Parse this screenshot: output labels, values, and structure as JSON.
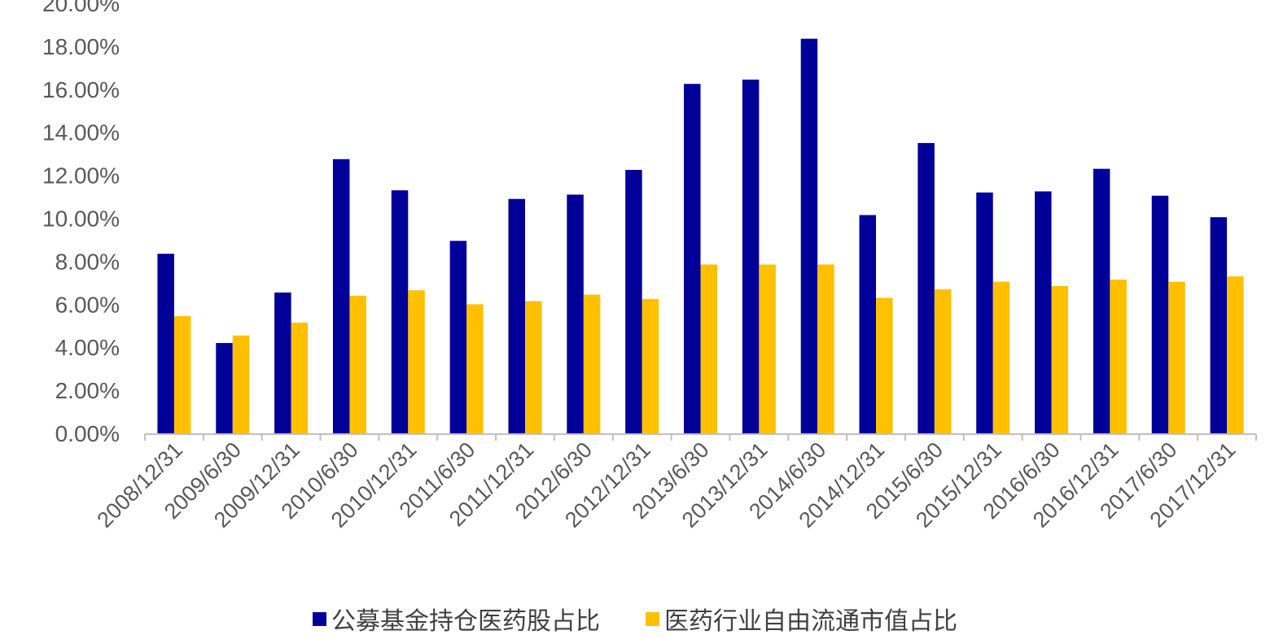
{
  "chart_data": {
    "type": "bar",
    "title": "",
    "xlabel": "",
    "ylabel": "",
    "ylim": [
      0,
      20
    ],
    "ytick_step": 2,
    "ytick_format": "percent_2dp",
    "grid": false,
    "legend_position": "bottom",
    "categories": [
      "2008/12/31",
      "2009/6/30",
      "2009/12/31",
      "2010/6/30",
      "2010/12/31",
      "2011/6/30",
      "2011/12/31",
      "2012/6/30",
      "2012/12/31",
      "2013/6/30",
      "2013/12/31",
      "2014/6/30",
      "2014/12/31",
      "2015/6/30",
      "2015/12/31",
      "2016/6/30",
      "2016/12/31",
      "2017/6/30",
      "2017/12/31"
    ],
    "series": [
      {
        "name": "公募基金持仓医药股占比",
        "color": "#000099",
        "values": [
          8.35,
          4.2,
          6.55,
          12.75,
          11.3,
          8.95,
          10.9,
          11.1,
          12.25,
          16.25,
          16.45,
          18.35,
          10.15,
          13.5,
          11.2,
          11.25,
          12.3,
          11.05,
          10.05
        ]
      },
      {
        "name": "医药行业自由流通市值占比",
        "color": "#FFC000",
        "values": [
          5.45,
          4.55,
          5.15,
          6.4,
          6.65,
          6.0,
          6.15,
          6.45,
          6.25,
          7.85,
          7.85,
          7.85,
          6.3,
          6.7,
          7.05,
          6.85,
          7.15,
          7.05,
          7.3
        ]
      }
    ]
  }
}
